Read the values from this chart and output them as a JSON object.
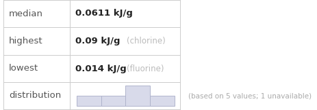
{
  "rows": [
    {
      "label": "median",
      "value": "0.0611 kJ/g",
      "note": ""
    },
    {
      "label": "highest",
      "value": "0.09 kJ/g",
      "note": "(chlorine)"
    },
    {
      "label": "lowest",
      "value": "0.014 kJ/g",
      "note": "(fluorine)"
    },
    {
      "label": "distribution",
      "value": "",
      "note": ""
    }
  ],
  "footer": "(based on 5 values; 1 unavailable)",
  "label_color": "#555555",
  "value_color": "#222222",
  "note_color": "#bbbbbb",
  "border_color": "#cccccc",
  "bg_color": "#ffffff",
  "hist_bar_color": "#d8daea",
  "hist_bar_edge": "#b0b4cc",
  "hist_bins": [
    1,
    1,
    2,
    1
  ],
  "footer_color": "#aaaaaa",
  "value_fontsize": 9.5,
  "label_fontsize": 9.5,
  "note_fontsize": 8.5,
  "footer_fontsize": 7.5
}
